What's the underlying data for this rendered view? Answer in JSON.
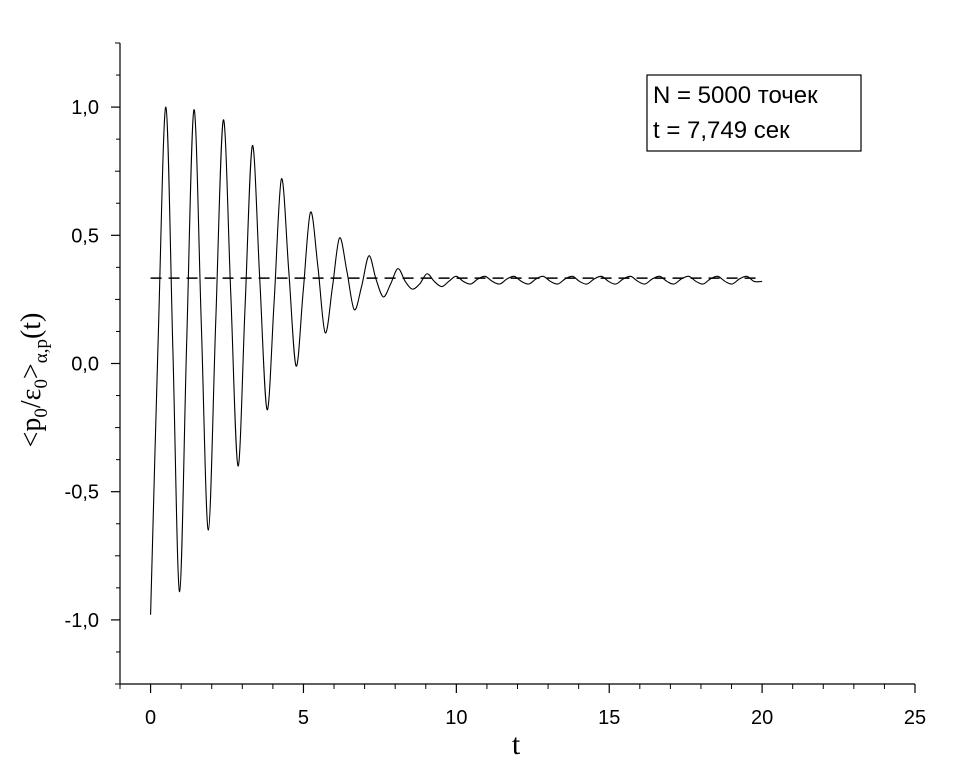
{
  "chart_data": {
    "type": "line",
    "title": "",
    "xlabel": "t",
    "ylabel": {
      "base": "<p",
      "sub1": "0",
      "mid": "/ε",
      "sub2": "0",
      "close": ">",
      "sub3": "α,p",
      "tail": "(t)"
    },
    "xlim": [
      -1,
      25
    ],
    "ylim": [
      -1.25,
      1.25
    ],
    "x_ticks": [
      {
        "value": 0,
        "label": "0"
      },
      {
        "value": 5,
        "label": "5"
      },
      {
        "value": 10,
        "label": "10"
      },
      {
        "value": 15,
        "label": "15"
      },
      {
        "value": 20,
        "label": "20"
      },
      {
        "value": 25,
        "label": "25"
      }
    ],
    "y_ticks": [
      {
        "value": 1.0,
        "label": "1,0"
      },
      {
        "value": 0.5,
        "label": "0,5"
      },
      {
        "value": 0.0,
        "label": "0,0"
      },
      {
        "value": -0.5,
        "label": "-0,5"
      },
      {
        "value": -1.0,
        "label": "-1,0"
      }
    ],
    "grid": false,
    "legend": {
      "placement": "top-right",
      "lines": [
        "N = 5000 точек",
        "t = 7,749 сек"
      ]
    },
    "series": [
      {
        "style": "solid",
        "color": "#000000",
        "x": [
          0.0,
          0.25,
          0.5,
          0.73,
          0.95,
          1.18,
          1.42,
          1.66,
          1.89,
          2.13,
          2.38,
          2.62,
          2.86,
          3.09,
          3.33,
          3.57,
          3.81,
          4.04,
          4.28,
          4.52,
          4.76,
          4.99,
          5.23,
          5.47,
          5.71,
          5.95,
          6.18,
          6.42,
          6.66,
          6.9,
          7.14,
          7.37,
          7.61,
          7.85,
          8.09,
          8.33,
          8.56,
          8.8,
          9.04,
          9.28,
          9.52,
          9.75,
          9.99,
          10.23,
          10.47,
          10.71,
          10.94,
          11.18,
          11.42,
          11.66,
          11.89,
          12.13,
          12.37,
          12.61,
          12.84,
          13.08,
          13.32,
          13.56,
          13.8,
          14.03,
          14.27,
          14.51,
          14.75,
          14.98,
          15.22,
          15.46,
          15.7,
          15.94,
          16.17,
          16.41,
          16.65,
          16.89,
          17.12,
          17.36,
          17.6,
          17.84,
          18.07,
          18.31,
          18.55,
          18.79,
          19.02,
          19.26,
          19.5,
          19.74,
          20.0
        ],
        "y": [
          -0.98,
          0.1,
          1.0,
          0.05,
          -0.89,
          0.08,
          0.99,
          0.15,
          -0.65,
          0.16,
          0.95,
          0.28,
          -0.4,
          0.22,
          0.85,
          0.33,
          -0.18,
          0.24,
          0.72,
          0.36,
          -0.01,
          0.28,
          0.59,
          0.38,
          0.12,
          0.3,
          0.49,
          0.36,
          0.21,
          0.3,
          0.42,
          0.33,
          0.26,
          0.31,
          0.37,
          0.32,
          0.29,
          0.31,
          0.35,
          0.32,
          0.3,
          0.32,
          0.34,
          0.32,
          0.31,
          0.33,
          0.34,
          0.32,
          0.31,
          0.33,
          0.34,
          0.32,
          0.31,
          0.33,
          0.34,
          0.32,
          0.31,
          0.33,
          0.34,
          0.32,
          0.31,
          0.33,
          0.34,
          0.32,
          0.31,
          0.33,
          0.34,
          0.32,
          0.31,
          0.33,
          0.34,
          0.32,
          0.31,
          0.33,
          0.34,
          0.32,
          0.31,
          0.33,
          0.34,
          0.32,
          0.31,
          0.33,
          0.34,
          0.32,
          0.32
        ]
      },
      {
        "style": "dashed",
        "color": "#000000",
        "x": [
          0.0,
          20.0
        ],
        "y": [
          0.333,
          0.333
        ]
      }
    ]
  }
}
